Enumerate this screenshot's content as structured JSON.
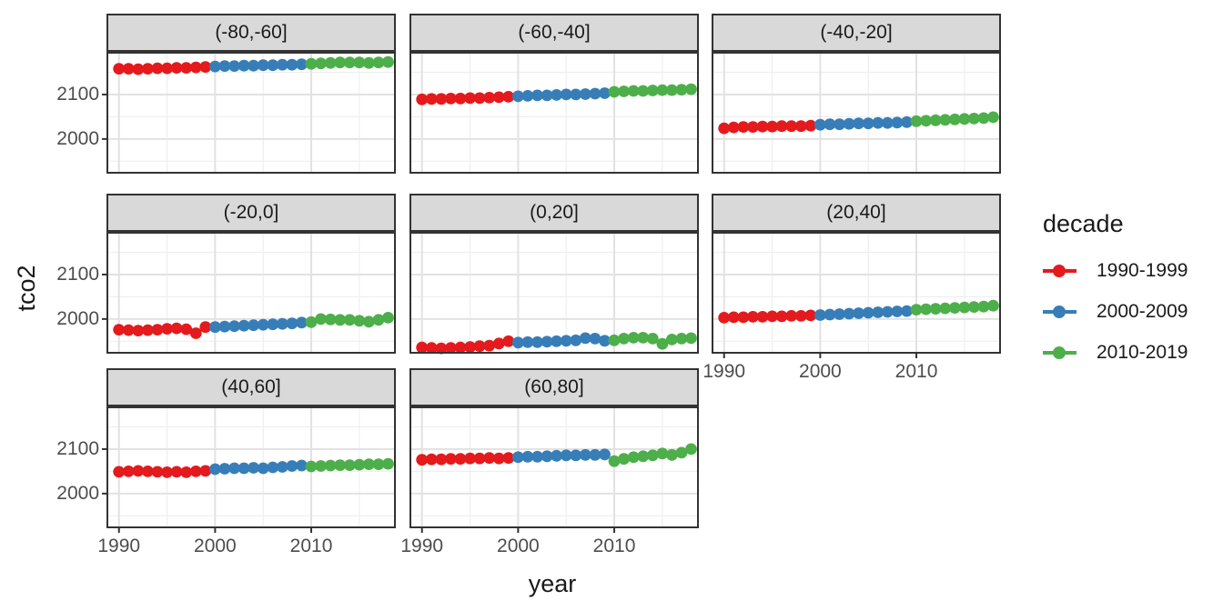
{
  "figure": {
    "background": "#FFFFFF",
    "panel_bg": "#FFFFFF",
    "panel_border_color": "#333333",
    "strip_bg": "#D9D9D9",
    "grid_major_color": "#E2E2E2",
    "grid_minor_color": "#EFEFEF",
    "tick_label_color": "#4D4D4D",
    "title_color": "#1A1A1A"
  },
  "chart_data": {
    "type": "scatter",
    "title": "",
    "xlabel": "year",
    "ylabel": "tco2",
    "grid": true,
    "legend_position": "right",
    "x_ticks": [
      1990,
      2000,
      2010
    ],
    "x_tick_labels": [
      "1990",
      "2000",
      "2010"
    ],
    "y_ticks": [
      2000,
      2100
    ],
    "y_tick_labels": [
      "2000",
      "2100"
    ],
    "xlim": [
      1988.7,
      2018.8
    ],
    "ylim": [
      1922,
      2196
    ],
    "legend": {
      "title": "decade",
      "entries": [
        {
          "label": "1990-1999",
          "color": "#E41A1C"
        },
        {
          "label": "2000-2009",
          "color": "#377EB8"
        },
        {
          "label": "2010-2019",
          "color": "#4DAF4A"
        }
      ]
    },
    "facets": [
      {
        "label": "(-80,-60]",
        "series": [
          {
            "name": "1990-1999",
            "start_year": 1990,
            "values": [
              2158,
              2158,
              2157,
              2158,
              2159,
              2159,
              2160,
              2160,
              2161,
              2162
            ]
          },
          {
            "name": "2000-2009",
            "start_year": 2000,
            "values": [
              2163,
              2164,
              2164,
              2165,
              2165,
              2166,
              2166,
              2167,
              2167,
              2168
            ]
          },
          {
            "name": "2010-2019",
            "start_year": 2010,
            "values": [
              2169,
              2170,
              2171,
              2172,
              2172,
              2172,
              2171,
              2172,
              2173
            ]
          }
        ]
      },
      {
        "label": "(-60,-40]",
        "series": [
          {
            "name": "1990-1999",
            "start_year": 1990,
            "values": [
              2089,
              2090,
              2090,
              2091,
              2091,
              2092,
              2092,
              2093,
              2094,
              2095
            ]
          },
          {
            "name": "2000-2009",
            "start_year": 2000,
            "values": [
              2096,
              2097,
              2098,
              2098,
              2099,
              2100,
              2100,
              2101,
              2102,
              2103
            ]
          },
          {
            "name": "2010-2019",
            "start_year": 2010,
            "values": [
              2106,
              2107,
              2108,
              2108,
              2109,
              2110,
              2110,
              2111,
              2112
            ]
          }
        ]
      },
      {
        "label": "(-40,-20]",
        "series": [
          {
            "name": "1990-1999",
            "start_year": 1990,
            "values": [
              2024,
              2026,
              2027,
              2027,
              2028,
              2028,
              2029,
              2029,
              2029,
              2030
            ]
          },
          {
            "name": "2000-2009",
            "start_year": 2000,
            "values": [
              2032,
              2033,
              2033,
              2034,
              2035,
              2035,
              2036,
              2036,
              2037,
              2038
            ]
          },
          {
            "name": "2010-2019",
            "start_year": 2010,
            "values": [
              2040,
              2041,
              2042,
              2043,
              2044,
              2045,
              2046,
              2047,
              2049
            ]
          }
        ]
      },
      {
        "label": "(-20,0]",
        "series": [
          {
            "name": "1990-1999",
            "start_year": 1990,
            "values": [
              1976,
              1975,
              1974,
              1975,
              1976,
              1978,
              1979,
              1977,
              1968,
              1982
            ]
          },
          {
            "name": "2000-2009",
            "start_year": 2000,
            "values": [
              1982,
              1983,
              1984,
              1985,
              1986,
              1987,
              1988,
              1989,
              1990,
              1992
            ]
          },
          {
            "name": "2010-2019",
            "start_year": 2010,
            "values": [
              1993,
              2000,
              1999,
              1998,
              1998,
              1996,
              1994,
              1998,
              2003
            ]
          }
        ]
      },
      {
        "label": "(0,20]",
        "series": [
          {
            "name": "1990-1999",
            "start_year": 1990,
            "values": [
              1936,
              1935,
              1934,
              1935,
              1936,
              1937,
              1939,
              1940,
              1945,
              1950
            ]
          },
          {
            "name": "2000-2009",
            "start_year": 2000,
            "values": [
              1947,
              1948,
              1948,
              1949,
              1950,
              1951,
              1952,
              1957,
              1956,
              1951
            ]
          },
          {
            "name": "2010-2019",
            "start_year": 2010,
            "values": [
              1952,
              1956,
              1958,
              1958,
              1956,
              1944,
              1954,
              1956,
              1957
            ]
          }
        ]
      },
      {
        "label": "(20,40]",
        "series": [
          {
            "name": "1990-1999",
            "start_year": 1990,
            "values": [
              2003,
              2004,
              2004,
              2005,
              2005,
              2006,
              2006,
              2007,
              2007,
              2008
            ]
          },
          {
            "name": "2000-2009",
            "start_year": 2000,
            "values": [
              2009,
              2010,
              2011,
              2012,
              2013,
              2014,
              2015,
              2016,
              2017,
              2018
            ]
          },
          {
            "name": "2010-2019",
            "start_year": 2010,
            "values": [
              2021,
              2022,
              2023,
              2024,
              2025,
              2026,
              2027,
              2028,
              2030
            ]
          }
        ]
      },
      {
        "label": "(40,60]",
        "series": [
          {
            "name": "1990-1999",
            "start_year": 1990,
            "values": [
              2049,
              2050,
              2051,
              2050,
              2049,
              2048,
              2049,
              2048,
              2050,
              2051
            ]
          },
          {
            "name": "2000-2009",
            "start_year": 2000,
            "values": [
              2055,
              2056,
              2057,
              2057,
              2058,
              2057,
              2059,
              2060,
              2062,
              2063
            ]
          },
          {
            "name": "2010-2019",
            "start_year": 2010,
            "values": [
              2061,
              2062,
              2063,
              2064,
              2064,
              2065,
              2066,
              2066,
              2067
            ]
          }
        ]
      },
      {
        "label": "(60,80]",
        "series": [
          {
            "name": "1990-1999",
            "start_year": 1990,
            "values": [
              2076,
              2077,
              2077,
              2078,
              2078,
              2079,
              2079,
              2080,
              2079,
              2080
            ]
          },
          {
            "name": "2000-2009",
            "start_year": 2000,
            "values": [
              2082,
              2083,
              2083,
              2084,
              2085,
              2086,
              2086,
              2087,
              2087,
              2088
            ]
          },
          {
            "name": "2010-2019",
            "start_year": 2010,
            "values": [
              2073,
              2078,
              2082,
              2084,
              2086,
              2090,
              2087,
              2092,
              2100
            ]
          }
        ]
      }
    ]
  }
}
